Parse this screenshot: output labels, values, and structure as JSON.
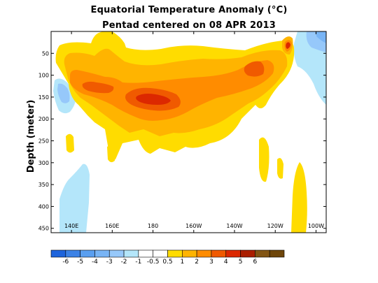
{
  "title": "Equatorial Temperature Anomaly (°C)",
  "subtitle": "Pentad centered on 08 APR 2013",
  "chart_data": {
    "type": "heatmap",
    "xlabel": "",
    "ylabel": "Depth (meter)",
    "x_ticks": [
      "140E",
      "160E",
      "180",
      "160W",
      "140W",
      "120W",
      "100W"
    ],
    "x_tick_values": [
      140,
      160,
      180,
      200,
      220,
      240,
      260
    ],
    "xlim": [
      130,
      265
    ],
    "y_ticks": [
      "50",
      "100",
      "150",
      "200",
      "250",
      "300",
      "350",
      "400",
      "450"
    ],
    "y_tick_values": [
      50,
      100,
      150,
      200,
      250,
      300,
      350,
      400,
      450
    ],
    "ylim": [
      0,
      460
    ],
    "y_reversed": true,
    "colorbar": {
      "labels": [
        "-6",
        "-5",
        "-4",
        "-3",
        "-2",
        "-1",
        "-0.5",
        "0.5",
        "1",
        "2",
        "3",
        "4",
        "5",
        "6"
      ],
      "colors": [
        "#1e64dc",
        "#3c82e6",
        "#5a9ff0",
        "#78b4f5",
        "#96c8fa",
        "#b4e6fa",
        "#ffffff",
        "#ffffff",
        "#ffdc00",
        "#ffb400",
        "#ff8c00",
        "#f05a00",
        "#dc2800",
        "#aa1e00",
        "#825514",
        "#6e460a"
      ]
    }
  }
}
